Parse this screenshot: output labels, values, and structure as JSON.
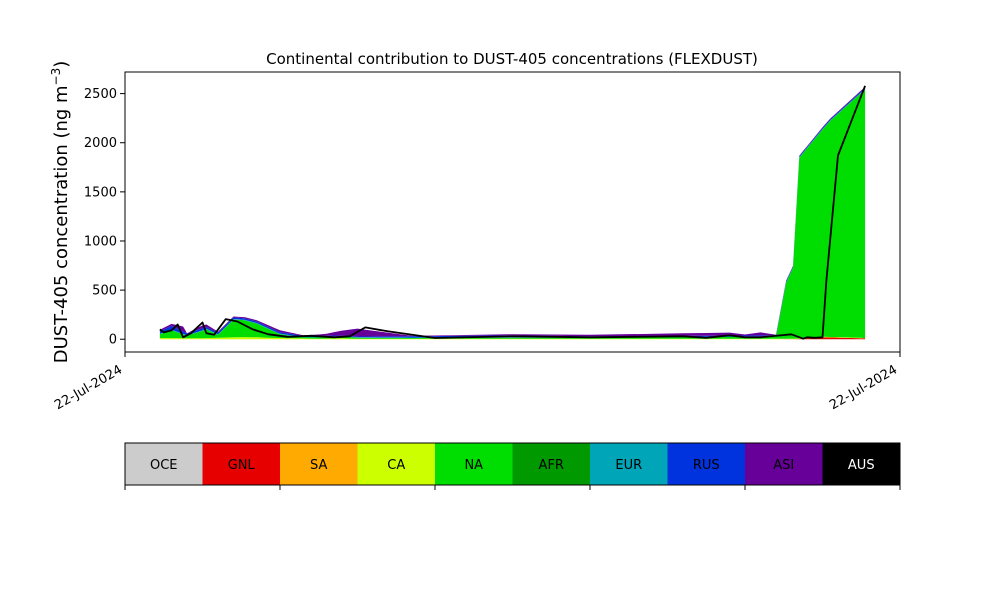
{
  "chart_data": {
    "type": "area",
    "title": "Continental contribution to DUST-405 concentrations (FLEXDUST)",
    "ylabel": "DUST-405 concentration (ng m",
    "ylabel_sup": "−3",
    "ylabel_close": ")",
    "xlabel": "",
    "ylim": [
      -130,
      2720
    ],
    "yticks": [
      0,
      500,
      1000,
      1500,
      2000,
      2500
    ],
    "ytick_labels": [
      "0",
      "500",
      "1000",
      "1500",
      "2000",
      "2500"
    ],
    "xticks": [
      {
        "label": "22-Jul-2024",
        "pos": 0
      },
      {
        "label": "22-Jul-2024",
        "pos": 1
      }
    ],
    "xlim": [
      0,
      1
    ],
    "grid": false,
    "stack_order": [
      "GNL",
      "CA",
      "NA",
      "EUR",
      "RUS",
      "ASI"
    ],
    "series": [
      {
        "name": "GNL",
        "color": "#e60000",
        "x": [
          0.045,
          0.84,
          0.87,
          0.9,
          0.955
        ],
        "values": [
          0,
          0,
          2,
          20,
          10
        ]
      },
      {
        "name": "CA",
        "color": "#ccff00",
        "x": [
          0.045,
          0.1,
          0.13,
          0.15,
          0.17,
          0.19,
          0.25,
          0.28,
          0.3,
          0.95
        ],
        "values": [
          12,
          10,
          18,
          22,
          20,
          14,
          5,
          10,
          5,
          5
        ]
      },
      {
        "name": "NA",
        "color": "#00dd00",
        "x": [
          0.045,
          0.06,
          0.08,
          0.105,
          0.12,
          0.14,
          0.155,
          0.17,
          0.2,
          0.23,
          0.27,
          0.3,
          0.37,
          0.6,
          0.84,
          0.853,
          0.862,
          0.87,
          0.91,
          0.955
        ],
        "values": [
          40,
          80,
          25,
          90,
          30,
          180,
          170,
          140,
          40,
          10,
          15,
          10,
          8,
          10,
          20,
          570,
          720,
          1840,
          2200,
          2530
        ]
      },
      {
        "name": "EUR",
        "color": "#00a6b8",
        "x": [
          0.045,
          0.5,
          0.955
        ],
        "values": [
          5,
          5,
          5
        ]
      },
      {
        "name": "RUS",
        "color": "#0033dd",
        "x": [
          0.045,
          0.06,
          0.08,
          0.3,
          0.35,
          0.42,
          0.5,
          0.6,
          0.955
        ],
        "values": [
          25,
          40,
          20,
          8,
          10,
          15,
          20,
          10,
          10
        ]
      },
      {
        "name": "ASI",
        "color": "#660099",
        "x": [
          0.045,
          0.06,
          0.075,
          0.08,
          0.1,
          0.12,
          0.15,
          0.2,
          0.23,
          0.26,
          0.3,
          0.37,
          0.5,
          0.6,
          0.78,
          0.8,
          0.82,
          0.84,
          0.955
        ],
        "values": [
          15,
          20,
          50,
          0,
          30,
          10,
          10,
          20,
          5,
          20,
          80,
          5,
          12,
          15,
          30,
          10,
          30,
          5,
          10
        ]
      }
    ],
    "total": {
      "name": "Total",
      "color": "#000000",
      "x": [
        0.045,
        0.05,
        0.06,
        0.068,
        0.075,
        0.085,
        0.1,
        0.105,
        0.115,
        0.13,
        0.145,
        0.165,
        0.185,
        0.21,
        0.24,
        0.27,
        0.29,
        0.31,
        0.34,
        0.4,
        0.5,
        0.6,
        0.72,
        0.75,
        0.78,
        0.8,
        0.82,
        0.86,
        0.875,
        0.88,
        0.89,
        0.9,
        0.905,
        0.92,
        0.955
      ],
      "values": [
        100,
        70,
        90,
        150,
        20,
        60,
        170,
        60,
        45,
        205,
        180,
        100,
        50,
        25,
        35,
        20,
        30,
        120,
        80,
        12,
        30,
        20,
        30,
        15,
        40,
        20,
        20,
        50,
        5,
        20,
        15,
        20,
        600,
        1870,
        2580
      ]
    },
    "legend": {
      "placement": "bottom",
      "items": [
        {
          "label": "OCE",
          "color": "#cccccc"
        },
        {
          "label": "GNL",
          "color": "#e60000"
        },
        {
          "label": "SA",
          "color": "#ffaa00"
        },
        {
          "label": "CA",
          "color": "#ccff00"
        },
        {
          "label": "NA",
          "color": "#00dd00"
        },
        {
          "label": "AFR",
          "color": "#009900"
        },
        {
          "label": "EUR",
          "color": "#00a6b8"
        },
        {
          "label": "RUS",
          "color": "#0033dd"
        },
        {
          "label": "ASI",
          "color": "#660099"
        },
        {
          "label": "AUS",
          "color": "#000000"
        }
      ]
    }
  }
}
